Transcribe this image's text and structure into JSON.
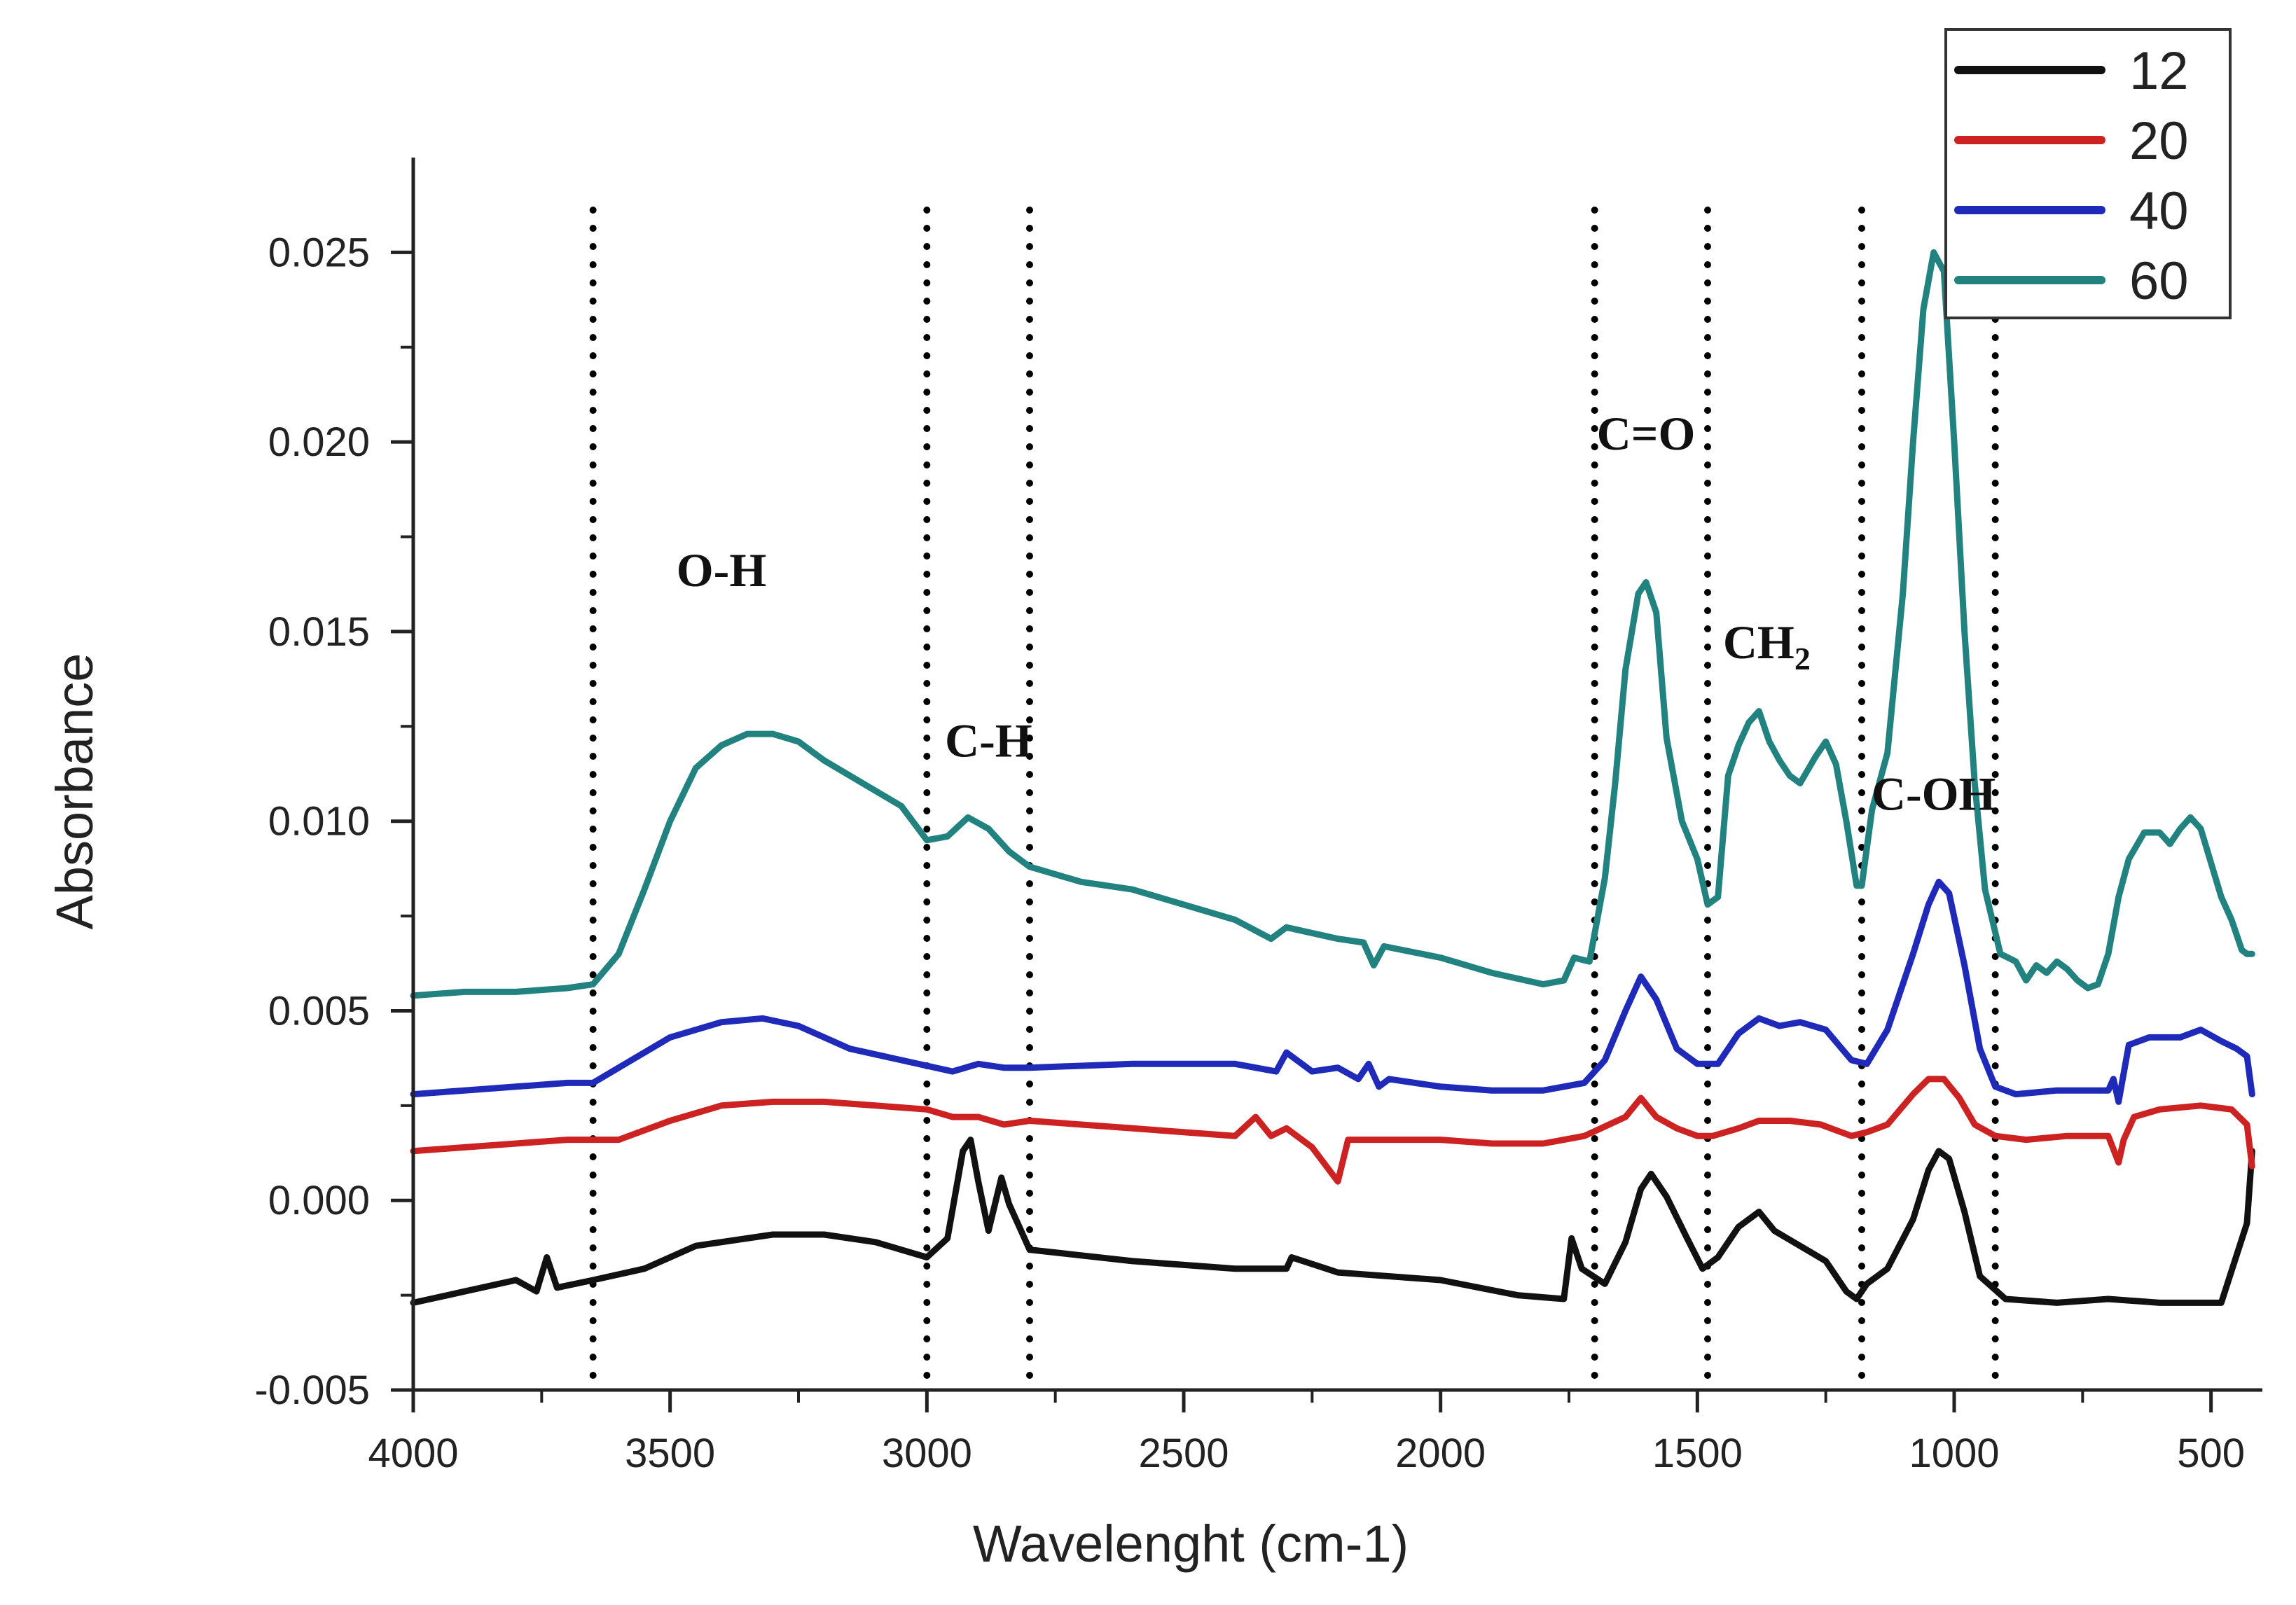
{
  "chart_data": {
    "type": "line",
    "title": "",
    "xlabel": "Wavelenght (cm-1)",
    "ylabel": "Absorbance",
    "xlim": [
      4000,
      400
    ],
    "ylim": [
      -0.005,
      0.0275
    ],
    "x_reversed": true,
    "grid": false,
    "legend_position": "top-right",
    "xticks": [
      4000,
      3500,
      3000,
      2500,
      2000,
      1500,
      1000,
      500
    ],
    "yticks": [
      -0.005,
      0.0,
      0.005,
      0.01,
      0.015,
      0.02,
      0.025
    ],
    "ytick_labels": [
      "-0.005",
      "0.000",
      "0.005",
      "0.010",
      "0.015",
      "0.020",
      "0.025"
    ],
    "reference_lines": [
      3650,
      3000,
      2800,
      1700,
      1480,
      1180,
      920
    ],
    "annotations": [
      {
        "text": "O-H",
        "x": 3400,
        "y": 0.0162
      },
      {
        "text": "C-H",
        "x": 2880,
        "y": 0.0117
      },
      {
        "text": "C=O",
        "x": 1600,
        "y": 0.0198
      },
      {
        "text": "CH",
        "sub": "2",
        "x": 1365,
        "y": 0.0143
      },
      {
        "text": "C-OH",
        "x": 1040,
        "y": 0.0103
      }
    ],
    "series": [
      {
        "name": "12",
        "color": "#111111",
        "points": [
          [
            4000,
            -0.0027
          ],
          [
            3900,
            -0.0024
          ],
          [
            3800,
            -0.0021
          ],
          [
            3760,
            -0.0024
          ],
          [
            3740,
            -0.0015
          ],
          [
            3720,
            -0.0023
          ],
          [
            3650,
            -0.0021
          ],
          [
            3550,
            -0.0018
          ],
          [
            3450,
            -0.0012
          ],
          [
            3300,
            -0.0009
          ],
          [
            3200,
            -0.0009
          ],
          [
            3100,
            -0.0011
          ],
          [
            3000,
            -0.0015
          ],
          [
            2960,
            -0.001
          ],
          [
            2930,
            0.0013
          ],
          [
            2915,
            0.0016
          ],
          [
            2900,
            0.0005
          ],
          [
            2880,
            -0.0008
          ],
          [
            2855,
            0.0006
          ],
          [
            2840,
            -0.0001
          ],
          [
            2800,
            -0.0013
          ],
          [
            2600,
            -0.0016
          ],
          [
            2400,
            -0.0018
          ],
          [
            2300,
            -0.0018
          ],
          [
            2290,
            -0.0015
          ],
          [
            2200,
            -0.0019
          ],
          [
            2000,
            -0.0021
          ],
          [
            1850,
            -0.0025
          ],
          [
            1760,
            -0.0026
          ],
          [
            1745,
            -0.001
          ],
          [
            1725,
            -0.0018
          ],
          [
            1680,
            -0.0022
          ],
          [
            1640,
            -0.0011
          ],
          [
            1610,
            0.0003
          ],
          [
            1590,
            0.0007
          ],
          [
            1560,
            0.0001
          ],
          [
            1520,
            -0.001
          ],
          [
            1490,
            -0.0018
          ],
          [
            1460,
            -0.0015
          ],
          [
            1420,
            -0.0007
          ],
          [
            1380,
            -0.0003
          ],
          [
            1350,
            -0.0008
          ],
          [
            1300,
            -0.0012
          ],
          [
            1250,
            -0.0016
          ],
          [
            1210,
            -0.0024
          ],
          [
            1190,
            -0.0026
          ],
          [
            1170,
            -0.0022
          ],
          [
            1130,
            -0.0018
          ],
          [
            1080,
            -0.0005
          ],
          [
            1050,
            0.0008
          ],
          [
            1030,
            0.0013
          ],
          [
            1010,
            0.0011
          ],
          [
            980,
            -0.0003
          ],
          [
            950,
            -0.002
          ],
          [
            900,
            -0.0026
          ],
          [
            800,
            -0.0027
          ],
          [
            700,
            -0.0026
          ],
          [
            600,
            -0.0027
          ],
          [
            480,
            -0.0027
          ],
          [
            430,
            -0.0006
          ],
          [
            420,
            0.0013
          ]
        ]
      },
      {
        "name": "20",
        "color": "#cc2222",
        "points": [
          [
            4000,
            0.0013
          ],
          [
            3900,
            0.0014
          ],
          [
            3800,
            0.0015
          ],
          [
            3700,
            0.0016
          ],
          [
            3600,
            0.0016
          ],
          [
            3500,
            0.0021
          ],
          [
            3400,
            0.0025
          ],
          [
            3300,
            0.0026
          ],
          [
            3200,
            0.0026
          ],
          [
            3100,
            0.0025
          ],
          [
            3000,
            0.0024
          ],
          [
            2950,
            0.0022
          ],
          [
            2900,
            0.0022
          ],
          [
            2850,
            0.002
          ],
          [
            2800,
            0.0021
          ],
          [
            2600,
            0.0019
          ],
          [
            2400,
            0.0017
          ],
          [
            2360,
            0.0022
          ],
          [
            2330,
            0.0017
          ],
          [
            2300,
            0.0019
          ],
          [
            2250,
            0.0014
          ],
          [
            2200,
            0.0005
          ],
          [
            2180,
            0.0016
          ],
          [
            2100,
            0.0016
          ],
          [
            2000,
            0.0016
          ],
          [
            1900,
            0.0015
          ],
          [
            1800,
            0.0015
          ],
          [
            1720,
            0.0017
          ],
          [
            1640,
            0.0022
          ],
          [
            1610,
            0.0027
          ],
          [
            1580,
            0.0022
          ],
          [
            1540,
            0.0019
          ],
          [
            1500,
            0.0017
          ],
          [
            1470,
            0.0017
          ],
          [
            1420,
            0.0019
          ],
          [
            1380,
            0.0021
          ],
          [
            1320,
            0.0021
          ],
          [
            1260,
            0.002
          ],
          [
            1200,
            0.0017
          ],
          [
            1170,
            0.0018
          ],
          [
            1130,
            0.002
          ],
          [
            1080,
            0.0028
          ],
          [
            1050,
            0.0032
          ],
          [
            1020,
            0.0032
          ],
          [
            990,
            0.0027
          ],
          [
            960,
            0.002
          ],
          [
            920,
            0.0017
          ],
          [
            860,
            0.0016
          ],
          [
            780,
            0.0017
          ],
          [
            700,
            0.0017
          ],
          [
            680,
            0.001
          ],
          [
            670,
            0.0016
          ],
          [
            650,
            0.0022
          ],
          [
            600,
            0.0024
          ],
          [
            520,
            0.0025
          ],
          [
            460,
            0.0024
          ],
          [
            430,
            0.002
          ],
          [
            420,
            0.0009
          ]
        ]
      },
      {
        "name": "40",
        "color": "#1f2bb8",
        "points": [
          [
            4000,
            0.0028
          ],
          [
            3900,
            0.0029
          ],
          [
            3800,
            0.003
          ],
          [
            3700,
            0.0031
          ],
          [
            3650,
            0.0031
          ],
          [
            3600,
            0.0035
          ],
          [
            3500,
            0.0043
          ],
          [
            3400,
            0.0047
          ],
          [
            3320,
            0.0048
          ],
          [
            3250,
            0.0046
          ],
          [
            3150,
            0.004
          ],
          [
            3050,
            0.0037
          ],
          [
            2950,
            0.0034
          ],
          [
            2900,
            0.0036
          ],
          [
            2850,
            0.0035
          ],
          [
            2800,
            0.0035
          ],
          [
            2600,
            0.0036
          ],
          [
            2400,
            0.0036
          ],
          [
            2320,
            0.0034
          ],
          [
            2300,
            0.0039
          ],
          [
            2250,
            0.0034
          ],
          [
            2200,
            0.0035
          ],
          [
            2160,
            0.0032
          ],
          [
            2140,
            0.0036
          ],
          [
            2120,
            0.003
          ],
          [
            2100,
            0.0032
          ],
          [
            2000,
            0.003
          ],
          [
            1900,
            0.0029
          ],
          [
            1800,
            0.0029
          ],
          [
            1720,
            0.0031
          ],
          [
            1680,
            0.0037
          ],
          [
            1640,
            0.005
          ],
          [
            1610,
            0.0059
          ],
          [
            1580,
            0.0053
          ],
          [
            1540,
            0.004
          ],
          [
            1500,
            0.0036
          ],
          [
            1460,
            0.0036
          ],
          [
            1420,
            0.0044
          ],
          [
            1380,
            0.0048
          ],
          [
            1340,
            0.0046
          ],
          [
            1300,
            0.0047
          ],
          [
            1250,
            0.0045
          ],
          [
            1200,
            0.0037
          ],
          [
            1170,
            0.0036
          ],
          [
            1130,
            0.0045
          ],
          [
            1080,
            0.0065
          ],
          [
            1050,
            0.0078
          ],
          [
            1030,
            0.0084
          ],
          [
            1010,
            0.0081
          ],
          [
            980,
            0.0062
          ],
          [
            950,
            0.004
          ],
          [
            920,
            0.003
          ],
          [
            880,
            0.0028
          ],
          [
            800,
            0.0029
          ],
          [
            700,
            0.0029
          ],
          [
            690,
            0.0032
          ],
          [
            680,
            0.0026
          ],
          [
            660,
            0.0041
          ],
          [
            620,
            0.0043
          ],
          [
            560,
            0.0043
          ],
          [
            520,
            0.0045
          ],
          [
            480,
            0.0042
          ],
          [
            450,
            0.004
          ],
          [
            430,
            0.0038
          ],
          [
            420,
            0.0028
          ]
        ]
      },
      {
        "name": "60",
        "color": "#21827f",
        "points": [
          [
            4000,
            0.0054
          ],
          [
            3900,
            0.0055
          ],
          [
            3800,
            0.0055
          ],
          [
            3700,
            0.0056
          ],
          [
            3650,
            0.0057
          ],
          [
            3600,
            0.0065
          ],
          [
            3550,
            0.0082
          ],
          [
            3500,
            0.01
          ],
          [
            3450,
            0.0114
          ],
          [
            3400,
            0.012
          ],
          [
            3350,
            0.0123
          ],
          [
            3300,
            0.0123
          ],
          [
            3250,
            0.0121
          ],
          [
            3200,
            0.0116
          ],
          [
            3100,
            0.0108
          ],
          [
            3050,
            0.0104
          ],
          [
            3000,
            0.0095
          ],
          [
            2960,
            0.0096
          ],
          [
            2920,
            0.0101
          ],
          [
            2880,
            0.0098
          ],
          [
            2840,
            0.0092
          ],
          [
            2800,
            0.0088
          ],
          [
            2700,
            0.0084
          ],
          [
            2600,
            0.0082
          ],
          [
            2500,
            0.0078
          ],
          [
            2400,
            0.0074
          ],
          [
            2330,
            0.0069
          ],
          [
            2300,
            0.0072
          ],
          [
            2200,
            0.0069
          ],
          [
            2150,
            0.0068
          ],
          [
            2130,
            0.0062
          ],
          [
            2110,
            0.0067
          ],
          [
            2000,
            0.0064
          ],
          [
            1900,
            0.006
          ],
          [
            1800,
            0.0057
          ],
          [
            1760,
            0.0058
          ],
          [
            1740,
            0.0064
          ],
          [
            1710,
            0.0063
          ],
          [
            1680,
            0.0085
          ],
          [
            1660,
            0.011
          ],
          [
            1640,
            0.014
          ],
          [
            1615,
            0.016
          ],
          [
            1600,
            0.0163
          ],
          [
            1580,
            0.0155
          ],
          [
            1560,
            0.0122
          ],
          [
            1530,
            0.01
          ],
          [
            1500,
            0.009
          ],
          [
            1480,
            0.0078
          ],
          [
            1460,
            0.008
          ],
          [
            1440,
            0.0112
          ],
          [
            1420,
            0.012
          ],
          [
            1400,
            0.0126
          ],
          [
            1380,
            0.0129
          ],
          [
            1360,
            0.0121
          ],
          [
            1340,
            0.0116
          ],
          [
            1320,
            0.0112
          ],
          [
            1300,
            0.011
          ],
          [
            1270,
            0.0117
          ],
          [
            1250,
            0.0121
          ],
          [
            1230,
            0.0115
          ],
          [
            1210,
            0.01
          ],
          [
            1190,
            0.0083
          ],
          [
            1180,
            0.0083
          ],
          [
            1160,
            0.0103
          ],
          [
            1130,
            0.0118
          ],
          [
            1100,
            0.016
          ],
          [
            1080,
            0.02
          ],
          [
            1060,
            0.0235
          ],
          [
            1040,
            0.025
          ],
          [
            1020,
            0.0245
          ],
          [
            1000,
            0.02
          ],
          [
            980,
            0.015
          ],
          [
            960,
            0.011
          ],
          [
            940,
            0.0082
          ],
          [
            910,
            0.0065
          ],
          [
            880,
            0.0063
          ],
          [
            860,
            0.0058
          ],
          [
            840,
            0.0062
          ],
          [
            820,
            0.006
          ],
          [
            800,
            0.0063
          ],
          [
            780,
            0.0061
          ],
          [
            760,
            0.0058
          ],
          [
            740,
            0.0056
          ],
          [
            720,
            0.0057
          ],
          [
            700,
            0.0065
          ],
          [
            680,
            0.008
          ],
          [
            660,
            0.009
          ],
          [
            630,
            0.0097
          ],
          [
            600,
            0.0097
          ],
          [
            580,
            0.0094
          ],
          [
            560,
            0.0098
          ],
          [
            540,
            0.0101
          ],
          [
            520,
            0.0098
          ],
          [
            500,
            0.0089
          ],
          [
            480,
            0.008
          ],
          [
            460,
            0.0074
          ],
          [
            440,
            0.0066
          ],
          [
            430,
            0.0065
          ],
          [
            420,
            0.0065
          ]
        ]
      }
    ]
  }
}
